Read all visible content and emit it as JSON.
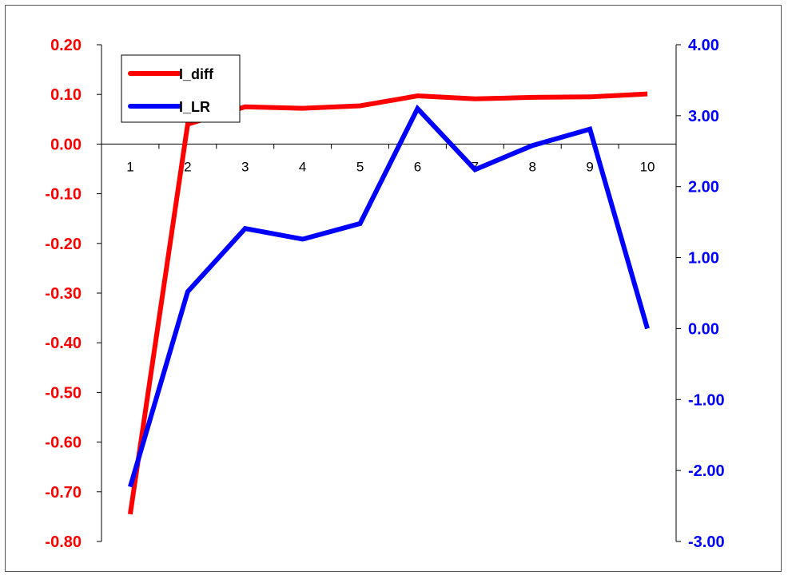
{
  "chart_data": {
    "type": "line",
    "categories": [
      "1",
      "2",
      "3",
      "4",
      "5",
      "6",
      "7",
      "8",
      "9",
      "10"
    ],
    "series": [
      {
        "name": "I_diff",
        "axis": "left",
        "color": "#ff0000",
        "values": [
          -0.745,
          0.04,
          0.075,
          0.072,
          0.077,
          0.097,
          0.091,
          0.094,
          0.095,
          0.101
        ]
      },
      {
        "name": "I_LR",
        "axis": "right",
        "color": "#0000ff",
        "values": [
          -2.23,
          0.52,
          1.41,
          1.26,
          1.48,
          3.1,
          2.24,
          2.58,
          2.81,
          0.0
        ]
      }
    ],
    "y_left": {
      "range": [
        -0.8,
        0.2
      ],
      "ticks": [
        "0.20",
        "0.10",
        "0.00",
        "-0.10",
        "-0.20",
        "-0.30",
        "-0.40",
        "-0.50",
        "-0.60",
        "-0.70",
        "-0.80"
      ],
      "color": "#ff0000"
    },
    "y_right": {
      "range": [
        -3.0,
        4.0
      ],
      "ticks": [
        "4.00",
        "3.00",
        "2.00",
        "1.00",
        "0.00",
        "-1.00",
        "-2.00",
        "-3.00"
      ],
      "color": "#0000ff"
    },
    "grid": false,
    "legend_position": "top-left"
  }
}
